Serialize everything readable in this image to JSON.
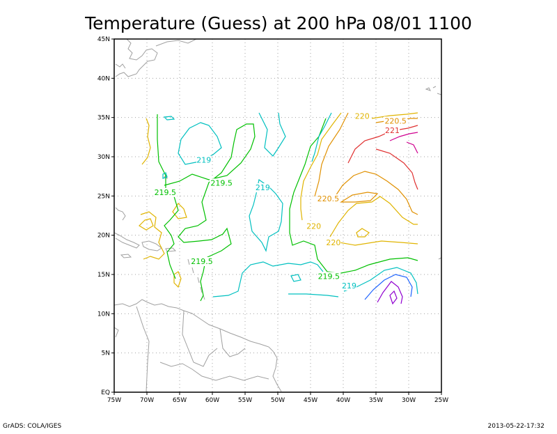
{
  "title": "Temperature (Guess) at 200 hPa 08/01 1100",
  "footer_left": "GrADS: COLA/IGES",
  "footer_right": "2013-05-22-17:32",
  "map": {
    "lon_range": [
      -75,
      -25
    ],
    "lat_range": [
      0,
      45
    ],
    "grid": true,
    "x_ticks": [
      "75W",
      "70W",
      "65W",
      "60W",
      "55W",
      "50W",
      "45W",
      "40W",
      "35W",
      "30W",
      "25W"
    ],
    "y_ticks": [
      "EQ",
      "5N",
      "10N",
      "15N",
      "20N",
      "25N",
      "30N",
      "35N",
      "40N",
      "45N"
    ]
  },
  "contour_labels": [
    {
      "text": "219",
      "color": "#00c0c0",
      "lon": -61.3,
      "lat": 29.5
    },
    {
      "text": "219",
      "color": "#00c0c0",
      "lon": -52.3,
      "lat": 26.0
    },
    {
      "text": "219",
      "color": "#00c0c0",
      "lon": -39.1,
      "lat": 13.5
    },
    {
      "text": "219.5",
      "color": "#00c000",
      "lon": -67.2,
      "lat": 25.4
    },
    {
      "text": "219.5",
      "color": "#00c000",
      "lon": -58.6,
      "lat": 26.6
    },
    {
      "text": "219.5",
      "color": "#00c000",
      "lon": -61.6,
      "lat": 16.6
    },
    {
      "text": "219.5",
      "color": "#00c000",
      "lon": -42.2,
      "lat": 14.7
    },
    {
      "text": "220",
      "color": "#e0b400",
      "lon": -37.1,
      "lat": 35.1
    },
    {
      "text": "220",
      "color": "#e0b400",
      "lon": -44.5,
      "lat": 21.1
    },
    {
      "text": "220",
      "color": "#e0b400",
      "lon": -41.5,
      "lat": 19.0
    },
    {
      "text": "220.5",
      "color": "#e09000",
      "lon": -42.3,
      "lat": 24.6
    },
    {
      "text": "220.5",
      "color": "#e09000",
      "lon": -32.0,
      "lat": 34.5
    },
    {
      "text": "221",
      "color": "#e03030",
      "lon": -32.5,
      "lat": 33.3
    }
  ],
  "colors": {
    "c219": "#00c0c0",
    "c2195": "#00c000",
    "c220": "#e0b400",
    "c2205": "#e09000",
    "c221": "#e03030",
    "c2215": "#d00090",
    "c218": "#1e64ff",
    "c217": "#9000d0",
    "coast": "#a0a0a0"
  }
}
